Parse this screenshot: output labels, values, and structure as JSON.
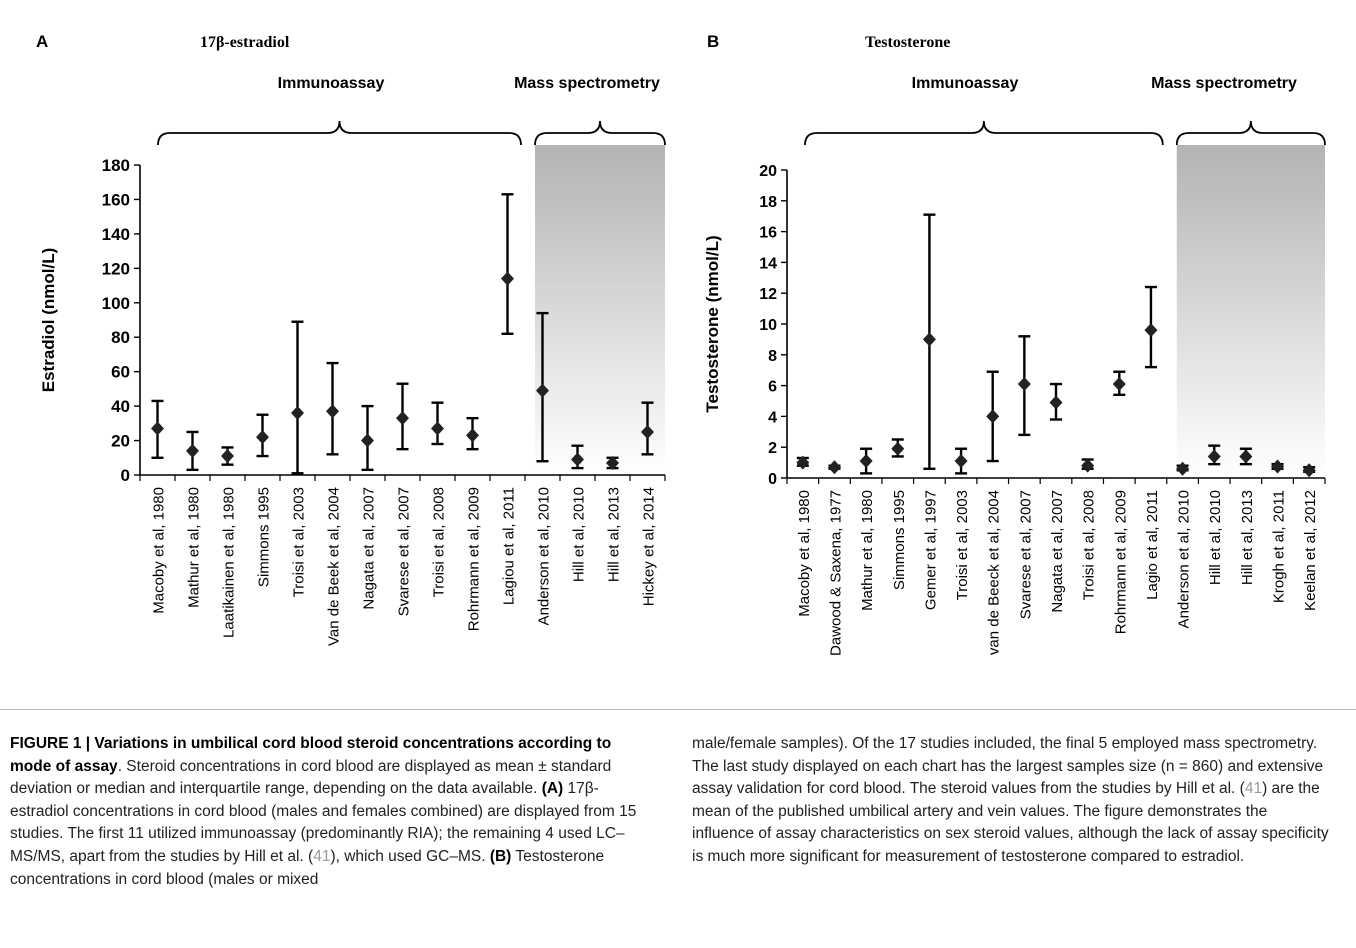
{
  "panel_a": {
    "letter": "A",
    "title": "17β-estradiol",
    "groups": {
      "immuno": "Immunoassay",
      "ms": "Mass spectrometry"
    }
  },
  "panel_b": {
    "letter": "B",
    "title": "Testosterone",
    "groups": {
      "immuno": "Immunoassay",
      "ms": "Mass spectrometry"
    }
  },
  "chart_data": [
    {
      "type": "scatter",
      "title": "17β-estradiol",
      "ylabel": "Estradiol (nmol/L)",
      "xlabel": "",
      "ylim": [
        0,
        180
      ],
      "yticks": [
        0,
        20,
        40,
        60,
        80,
        100,
        120,
        140,
        160,
        180
      ],
      "grid": false,
      "categories": [
        "Macoby et al, 1980",
        "Mathur et al, 1980",
        "Laatikainen et al, 1980",
        "Simmons 1995",
        "Troisi et al, 2003",
        "Van de Beek et al, 2004",
        "Nagata et al, 2007",
        "Svarese et al, 2007",
        "Troisi et al, 2008",
        "Rohrmann et al, 2009",
        "Lagiou et al, 2011",
        "Anderson et al, 2010",
        "Hill et al, 2010",
        "Hill et al, 2013",
        "Hickey et al, 2014"
      ],
      "values": [
        27,
        14,
        11,
        22,
        36,
        37,
        20,
        33,
        27,
        23,
        114,
        49,
        9,
        7,
        25
      ],
      "error_low": [
        10,
        3,
        6,
        11,
        1,
        12,
        3,
        15,
        18,
        15,
        82,
        8,
        4,
        4,
        12
      ],
      "error_high": [
        43,
        25,
        16,
        35,
        89,
        65,
        40,
        53,
        42,
        33,
        163,
        94,
        17,
        10,
        42
      ],
      "immunoassay_count": 11,
      "mass_spec_count": 4
    },
    {
      "type": "scatter",
      "title": "Testosterone",
      "ylabel": "Testosterone (nmol/L)",
      "xlabel": "",
      "ylim": [
        0,
        20
      ],
      "yticks": [
        0,
        2,
        4,
        6,
        8,
        10,
        12,
        14,
        16,
        18,
        20
      ],
      "grid": false,
      "categories": [
        "Macoby et al, 1980",
        "Dawood & Saxena, 1977",
        "Mathur et al, 1980",
        "Simmons 1995",
        "Gemer et al, 1997",
        "Troisi et al, 2003",
        "van de Beeck et al, 2004",
        "Svarese et al, 2007",
        "Nagata et al, 2007",
        "Troisi et al, 2008",
        "Rohrmann et al, 2009",
        "Lagio et al, 2011",
        "Anderson et al, 2010",
        "Hill et al, 2010",
        "Hill et al, 2013",
        "Krogh et al, 2011",
        "Keelan et al, 2012"
      ],
      "values": [
        1.0,
        0.7,
        1.1,
        1.9,
        9.0,
        1.1,
        4.0,
        6.1,
        4.9,
        0.8,
        6.1,
        9.6,
        0.6,
        1.4,
        1.4,
        0.75,
        0.5
      ],
      "error_low": [
        0.8,
        0.6,
        0.3,
        1.4,
        0.6,
        0.3,
        1.1,
        2.8,
        3.8,
        0.6,
        5.4,
        7.2,
        0.5,
        0.9,
        0.9,
        0.6,
        0.4
      ],
      "error_high": [
        1.3,
        0.8,
        1.9,
        2.5,
        17.1,
        1.9,
        6.9,
        9.2,
        6.1,
        1.2,
        6.9,
        12.4,
        0.8,
        2.1,
        1.9,
        0.9,
        0.7
      ],
      "immunoassay_count": 12,
      "mass_spec_count": 5
    }
  ],
  "caption": {
    "heading": "FIGURE 1 | Variations in umbilical cord blood steroid concentrations according to mode of assay",
    "intro": ". Steroid concentrations in cord blood are displayed as mean ± standard deviation or median and interquartile range, depending on the data available. ",
    "a_label": "(A)",
    "a_text_1": " 17β-estradiol concentrations in cord blood (males and females combined) are displayed from 15 studies. The first 11 utilized immunoassay (predominantly RIA); the remaining 4 used LC–MS/MS, apart from the studies by Hill et al. (",
    "ref_1": "41",
    "a_text_2": "), which used GC–MS. ",
    "b_label": "(B)",
    "b_text": " Testosterone concentrations in cord blood (males or mixed",
    "right_1": "male/female samples). Of the 17 studies included, the final 5 employed mass spectrometry. The last study displayed on each chart has the largest samples size (n = 860) and extensive assay validation for cord blood. The steroid values from the studies by Hill et al. (",
    "ref_2": "41",
    "right_2": ") are the mean of the published umbilical artery and vein values. The figure demonstrates the influence of assay characteristics on sex steroid values, although the lack of assay specificity is much more significant for measurement of testosterone compared to estradiol."
  }
}
